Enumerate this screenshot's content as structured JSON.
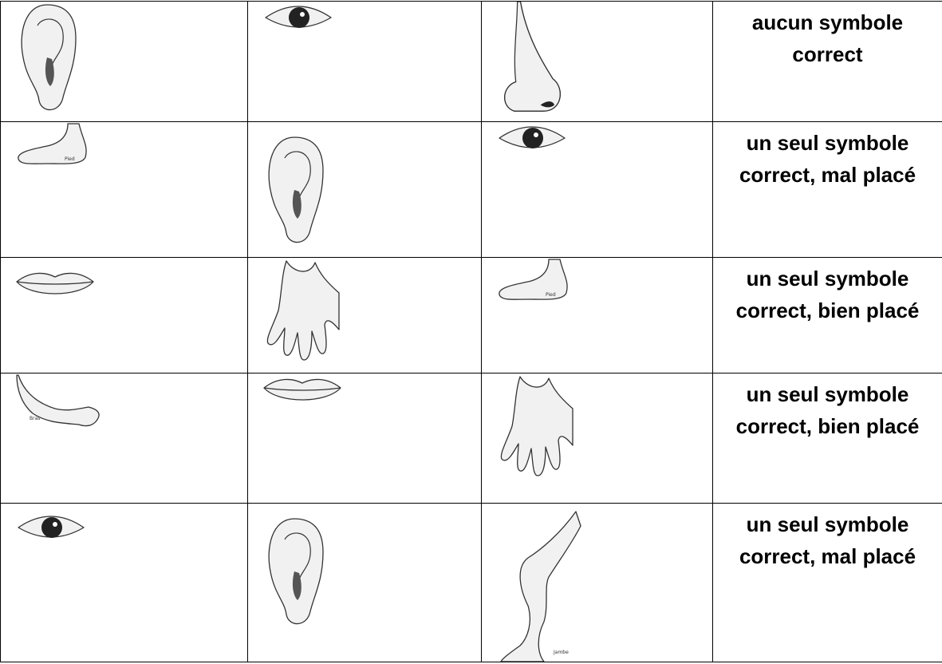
{
  "table": {
    "rows": [
      {
        "label": "aucun symbole correct"
      },
      {
        "label": "un seul symbole correct, mal placé",
        "captions": [
          "Pied"
        ]
      },
      {
        "label": "un seul symbole correct, bien placé",
        "captions": [
          "Pied"
        ]
      },
      {
        "label": "un seul symbole correct, bien placé",
        "captions": [
          "Bras"
        ]
      },
      {
        "label": "un seul symbole correct, mal placé",
        "captions": [
          "Jambe"
        ]
      }
    ]
  }
}
